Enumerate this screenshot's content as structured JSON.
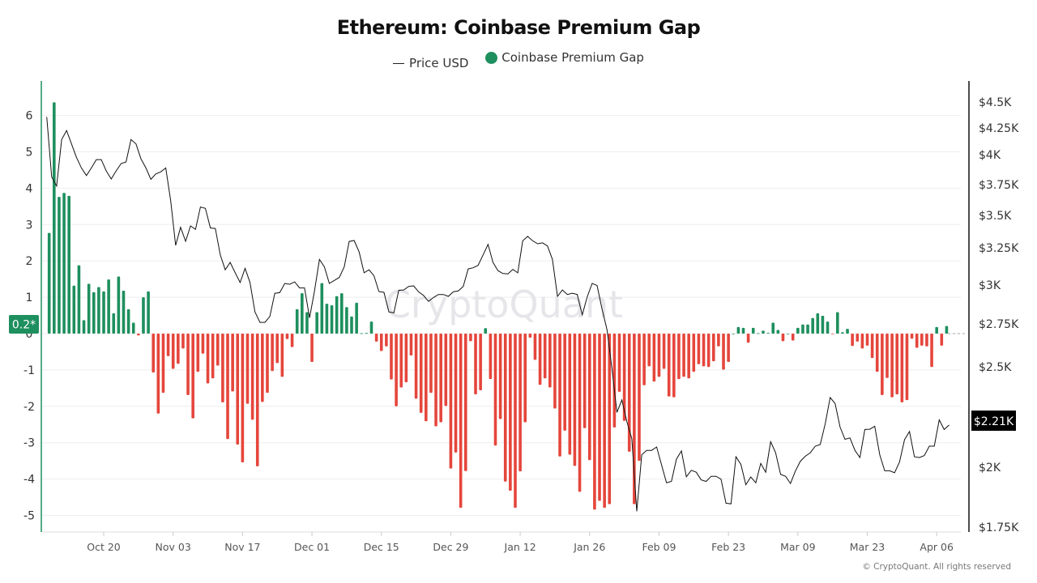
{
  "chart_data": {
    "type": "bar+line",
    "title": "Ethereum: Coinbase Premium Gap",
    "legend": {
      "position": "top",
      "items": [
        "Price USD",
        "Coinbase Premium Gap"
      ]
    },
    "watermark": "CryptoQuant",
    "footer": "© CryptoQuant. All rights reserved",
    "colors": {
      "price_line": "#111111",
      "positive": "#1e8f5e",
      "negative": "#e5463c",
      "left_axis": "#1e8f5e",
      "right_axis": "#111111",
      "grid": "#eeeeee"
    },
    "grid": true,
    "left_axis": {
      "ylim": [
        -5.3,
        7.1
      ],
      "ticks": [
        "6",
        "5",
        "4",
        "3",
        "2",
        "1",
        "0",
        "-1",
        "-2",
        "-3",
        "-4",
        "-5"
      ],
      "current_marker": "0.2*"
    },
    "right_axis": {
      "scale": "non-linear",
      "ticks": [
        "$4.5K",
        "$4.25K",
        "$4K",
        "$3.75K",
        "$3.5K",
        "$3.25K",
        "$3K",
        "$2.75K",
        "$2.5K",
        "$2K",
        "$1.75K"
      ],
      "tick_values": [
        4500,
        4250,
        4000,
        3750,
        3500,
        3250,
        3000,
        2750,
        2500,
        2000,
        1750
      ],
      "current_marker": "$2.21K"
    },
    "x_ticks": [
      "Oct 20",
      "Nov 03",
      "Nov 17",
      "Dec 01",
      "Dec 15",
      "Dec 29",
      "Jan 12",
      "Jan 26",
      "Feb 09",
      "Feb 23",
      "Mar 09",
      "Mar 23",
      "Apr 06"
    ],
    "x": [
      "Oct 09",
      "Oct 10",
      "Oct 11",
      "Oct 12",
      "Oct 13",
      "Oct 14",
      "Oct 15",
      "Oct 16",
      "Oct 17",
      "Oct 18",
      "Oct 19",
      "Oct 20",
      "Oct 21",
      "Oct 22",
      "Oct 23",
      "Oct 24",
      "Oct 25",
      "Oct 26",
      "Oct 27",
      "Oct 28",
      "Oct 29",
      "Oct 30",
      "Oct 31",
      "Nov 01",
      "Nov 02",
      "Nov 03",
      "Nov 04",
      "Nov 05",
      "Nov 06",
      "Nov 07",
      "Nov 08",
      "Nov 09",
      "Nov 10",
      "Nov 11",
      "Nov 12",
      "Nov 13",
      "Nov 14",
      "Nov 15",
      "Nov 16",
      "Nov 17",
      "Nov 18",
      "Nov 19",
      "Nov 20",
      "Nov 21",
      "Nov 22",
      "Nov 23",
      "Nov 24",
      "Nov 25",
      "Nov 26",
      "Nov 27",
      "Nov 28",
      "Nov 29",
      "Nov 30",
      "Dec 01",
      "Dec 02",
      "Dec 03",
      "Dec 04",
      "Dec 05",
      "Dec 06",
      "Dec 07",
      "Dec 08",
      "Dec 09",
      "Dec 10",
      "Dec 11",
      "Dec 12",
      "Dec 13",
      "Dec 14",
      "Dec 15",
      "Dec 16",
      "Dec 17",
      "Dec 18",
      "Dec 19",
      "Dec 20",
      "Dec 21",
      "Dec 22",
      "Dec 23",
      "Dec 24",
      "Dec 25",
      "Dec 26",
      "Dec 27",
      "Dec 28",
      "Dec 29",
      "Dec 30",
      "Dec 31",
      "Jan 01",
      "Jan 02",
      "Jan 03",
      "Jan 04",
      "Jan 05",
      "Jan 06",
      "Jan 07",
      "Jan 08",
      "Jan 09",
      "Jan 10",
      "Jan 11",
      "Jan 12",
      "Jan 13",
      "Jan 14",
      "Jan 15",
      "Jan 16",
      "Jan 17",
      "Jan 18",
      "Jan 19",
      "Jan 20",
      "Jan 21",
      "Jan 22",
      "Jan 23",
      "Jan 24",
      "Jan 25",
      "Jan 26",
      "Jan 27",
      "Jan 28",
      "Jan 29",
      "Jan 30",
      "Jan 31",
      "Feb 01",
      "Feb 02",
      "Feb 03",
      "Feb 04",
      "Feb 05",
      "Feb 06",
      "Feb 07",
      "Feb 08",
      "Feb 09",
      "Feb 10",
      "Feb 11",
      "Feb 12",
      "Feb 13",
      "Feb 14",
      "Feb 15",
      "Feb 16",
      "Feb 17",
      "Feb 18",
      "Feb 19",
      "Feb 20",
      "Feb 21",
      "Feb 22",
      "Feb 23",
      "Feb 24",
      "Feb 25",
      "Feb 26",
      "Feb 27",
      "Feb 28",
      "Mar 01",
      "Mar 02",
      "Mar 03",
      "Mar 04",
      "Mar 05",
      "Mar 06",
      "Mar 07",
      "Mar 08",
      "Mar 09",
      "Mar 10",
      "Mar 11",
      "Mar 12",
      "Mar 13",
      "Mar 14",
      "Mar 15",
      "Mar 16",
      "Mar 17",
      "Mar 18",
      "Mar 19",
      "Mar 20",
      "Mar 21",
      "Mar 22",
      "Mar 23",
      "Mar 24",
      "Mar 25",
      "Mar 26",
      "Mar 27",
      "Mar 28",
      "Mar 29",
      "Mar 30",
      "Mar 31",
      "Apr 01",
      "Apr 02",
      "Apr 03",
      "Apr 04",
      "Apr 05",
      "Apr 06",
      "Apr 07",
      "Apr 08",
      "Apr 09"
    ],
    "series": [
      {
        "name": "Coinbase Premium Gap",
        "type": "bar",
        "axis": "left",
        "values": [
          2.77,
          6.36,
          3.76,
          3.87,
          3.79,
          1.32,
          1.88,
          0.37,
          1.37,
          1.14,
          1.28,
          1.16,
          1.49,
          0.56,
          1.57,
          1.18,
          0.67,
          0.3,
          -0.05,
          1.0,
          1.16,
          -1.07,
          -2.2,
          -1.63,
          -0.62,
          -0.97,
          -0.83,
          -0.41,
          -1.69,
          -2.33,
          -1.05,
          -0.55,
          -1.37,
          -1.23,
          -0.88,
          -1.89,
          -2.9,
          -1.59,
          -3.05,
          -3.54,
          -1.93,
          -2.37,
          -3.65,
          -1.88,
          -1.63,
          -1.03,
          -0.81,
          -1.19,
          -0.15,
          -0.37,
          0.67,
          1.11,
          0.59,
          -0.78,
          0.59,
          1.39,
          0.82,
          0.78,
          1.03,
          1.11,
          0.73,
          0.47,
          0.85,
          0.01,
          0.02,
          0.33,
          -0.22,
          -0.48,
          -0.35,
          -1.26,
          -2.0,
          -1.48,
          -1.34,
          -0.6,
          -1.79,
          -2.18,
          -2.41,
          -1.63,
          -2.55,
          -2.44,
          -1.99,
          -3.71,
          -3.27,
          -4.79,
          -3.78,
          -0.21,
          -1.67,
          -1.56,
          0.15,
          -1.25,
          -3.08,
          -2.35,
          -4.07,
          -4.32,
          -4.79,
          -3.79,
          -2.44,
          -0.11,
          -0.72,
          -1.41,
          -1.23,
          -1.48,
          -2.06,
          -3.38,
          -2.67,
          -3.33,
          -3.64,
          -4.35,
          -2.6,
          -3.48,
          -4.84,
          -4.6,
          -4.79,
          -4.69,
          -2.58,
          -1.6,
          -2.4,
          -3.25,
          -4.69,
          -3.5,
          -1.42,
          -0.9,
          -1.32,
          -1.19,
          -0.97,
          -1.73,
          -1.75,
          -1.25,
          -1.19,
          -1.23,
          -1.05,
          -0.84,
          -0.9,
          -0.92,
          -0.76,
          -0.35,
          -0.99,
          -0.78,
          0,
          0.18,
          0.16,
          -0.25,
          0.16,
          0.01,
          0.08,
          0.02,
          0.3,
          0.1,
          -0.21,
          0,
          -0.19,
          0.16,
          0.25,
          0.25,
          0.43,
          0.56,
          0.49,
          0.33,
          -0.01,
          0.59,
          0.04,
          0.13,
          -0.34,
          -0.22,
          -0.41,
          -0.33,
          -0.67,
          -1.05,
          -1.69,
          -1.22,
          -1.75,
          -1.67,
          -1.89,
          -1.83,
          -0.14,
          -0.39,
          -0.33,
          -0.35,
          -0.92,
          0.18,
          -0.33,
          0.21,
          null
        ]
      },
      {
        "name": "Price USD",
        "type": "line",
        "axis": "right",
        "values": [
          4356,
          3814,
          3739,
          4142,
          4226,
          4100,
          3977,
          3889,
          3826,
          3889,
          3959,
          3959,
          3865,
          3797,
          3865,
          3926,
          3939,
          4142,
          4100,
          3964,
          3889,
          3794,
          3839,
          3857,
          3889,
          3618,
          3269,
          3408,
          3300,
          3419,
          3392,
          3568,
          3557,
          3403,
          3399,
          3202,
          3102,
          3152,
          3082,
          3017,
          3112,
          3017,
          2827,
          2760,
          2760,
          2798,
          2947,
          2951,
          3011,
          3005,
          3021,
          2981,
          2981,
          2789,
          2962,
          3172,
          3122,
          3011,
          3031,
          3051,
          3122,
          3299,
          3306,
          3222,
          3082,
          3102,
          3062,
          2958,
          2953,
          2827,
          2821,
          2966,
          2968,
          2991,
          2995,
          2956,
          2933,
          2895,
          2920,
          2939,
          2939,
          2927,
          2956,
          2962,
          2991,
          3108,
          3116,
          3132,
          3202,
          3276,
          3152,
          3097,
          3077,
          3075,
          3105,
          3082,
          3304,
          3338,
          3304,
          3281,
          3288,
          3264,
          3172,
          2927,
          2968,
          2939,
          2947,
          2939,
          2808,
          2924,
          3011,
          2997,
          2846,
          2715,
          2489,
          2273,
          2335,
          2228,
          2142,
          1816,
          2062,
          2084,
          2084,
          2101,
          2011,
          1935,
          1941,
          2040,
          2081,
          1960,
          1987,
          1979,
          1947,
          1941,
          1962,
          1962,
          1950,
          1850,
          1847,
          2052,
          2014,
          1927,
          1959,
          1935,
          2019,
          1979,
          2127,
          2073,
          1970,
          1962,
          1932,
          1984,
          2030,
          2055,
          2072,
          2105,
          2113,
          2214,
          2347,
          2317,
          2200,
          2139,
          2146,
          2084,
          2048,
          2188,
          2189,
          2204,
          2062,
          1985,
          1985,
          1977,
          2026,
          2137,
          2178,
          2052,
          2048,
          2058,
          2105,
          2105,
          2236,
          2188,
          2210
        ]
      }
    ]
  }
}
